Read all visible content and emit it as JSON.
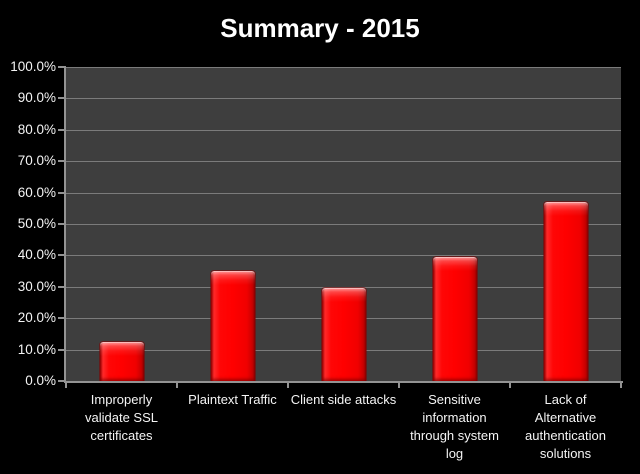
{
  "title": "Summary - 2015",
  "colors": {
    "background": "#000000",
    "plot_background": "#3E3E3E",
    "gridline": "#7B7B7B",
    "axis": "#939393",
    "bar_fill": "#FF0000",
    "bar_edge": "#8F0000",
    "text": "#FFFFFF"
  },
  "chart_data": {
    "type": "bar",
    "title": "Summary - 2015",
    "categories": [
      "Improperly validate SSL certificates",
      "Plaintext Traffic",
      "Client side attacks",
      "Sensitive information through system log",
      "Lack of Alternative authentication solutions"
    ],
    "category_display_lines": [
      [
        "Improperly",
        "validate SSL",
        "certificates"
      ],
      [
        "Plaintext Traffic"
      ],
      [
        "Client side attacks"
      ],
      [
        "Sensitive",
        "information",
        "through system",
        "log"
      ],
      [
        "Lack of",
        "Alternative",
        "authentication",
        "solutions"
      ]
    ],
    "values": [
      12.5,
      35.0,
      29.5,
      39.5,
      57.0
    ],
    "unit": "%",
    "xlabel": "",
    "ylabel": "",
    "ylim": [
      0,
      100
    ],
    "ytick_step": 10,
    "ytick_labels": [
      "0.0%",
      "10.0%",
      "20.0%",
      "30.0%",
      "40.0%",
      "50.0%",
      "60.0%",
      "70.0%",
      "80.0%",
      "90.0%",
      "100.0%"
    ],
    "grid": true,
    "legend": false,
    "series_color": "#FF0000"
  }
}
